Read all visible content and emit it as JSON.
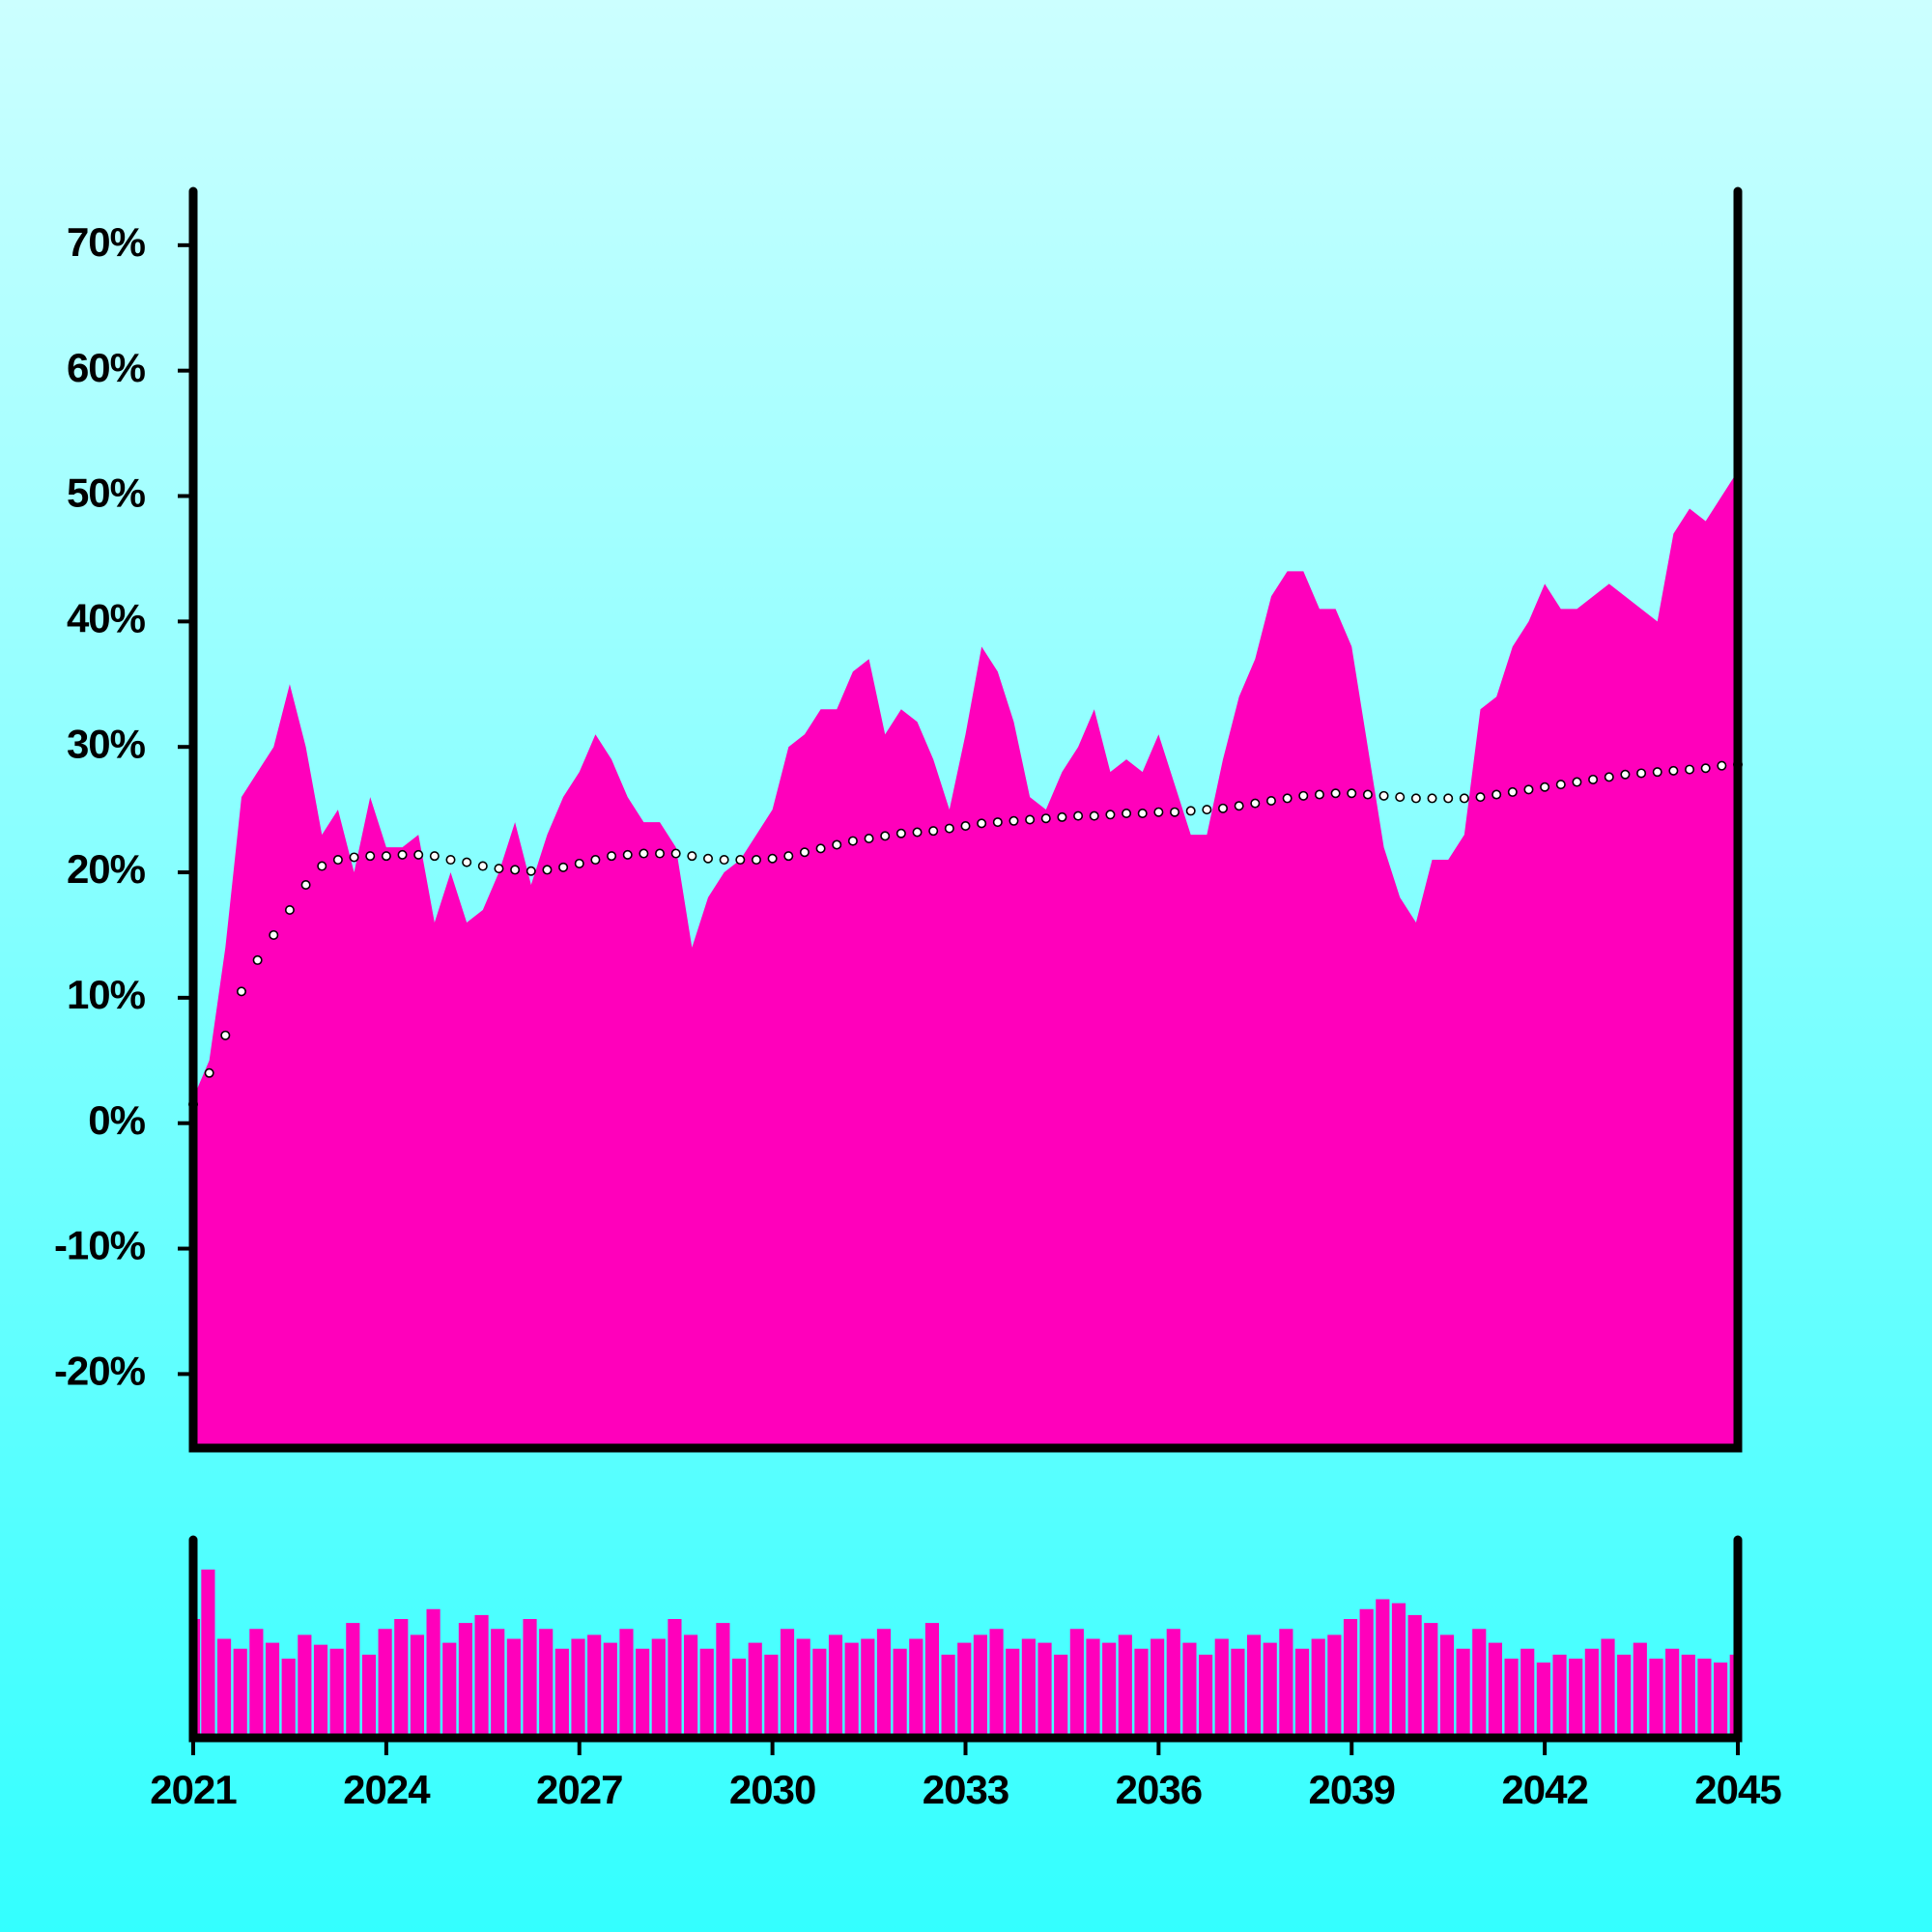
{
  "chart_data": [
    {
      "type": "area",
      "x": [
        2021,
        2021.25,
        2021.5,
        2021.75,
        2022,
        2022.25,
        2022.5,
        2022.75,
        2023,
        2023.25,
        2023.5,
        2023.75,
        2024,
        2024.25,
        2024.5,
        2024.75,
        2025,
        2025.25,
        2025.5,
        2025.75,
        2026,
        2026.25,
        2026.5,
        2026.75,
        2027,
        2027.25,
        2027.5,
        2027.75,
        2028,
        2028.25,
        2028.5,
        2028.75,
        2029,
        2029.25,
        2029.5,
        2029.75,
        2030,
        2030.25,
        2030.5,
        2030.75,
        2031,
        2031.25,
        2031.5,
        2031.75,
        2032,
        2032.25,
        2032.5,
        2032.75,
        2033,
        2033.25,
        2033.5,
        2033.75,
        2034,
        2034.25,
        2034.5,
        2034.75,
        2035,
        2035.25,
        2035.5,
        2035.75,
        2036,
        2036.25,
        2036.5,
        2036.75,
        2037,
        2037.25,
        2037.5,
        2037.75,
        2038,
        2038.25,
        2038.5,
        2038.75,
        2039,
        2039.25,
        2039.5,
        2039.75,
        2040,
        2040.25,
        2040.5,
        2040.75,
        2041,
        2041.25,
        2041.5,
        2041.75,
        2042,
        2042.25,
        2042.5,
        2042.75,
        2043,
        2043.25,
        2043.5,
        2043.75,
        2044,
        2044.25,
        2044.5,
        2044.75,
        2045
      ],
      "series": [
        {
          "type": "area",
          "color": "#ff00bb",
          "values": [
            2,
            5,
            14,
            26,
            28,
            30,
            35,
            30,
            23,
            25,
            20,
            26,
            22,
            22,
            23,
            16,
            20,
            16,
            17,
            20,
            24,
            19,
            23,
            26,
            28,
            31,
            29,
            26,
            24,
            24,
            22,
            14,
            18,
            20,
            21,
            23,
            25,
            30,
            31,
            33,
            33,
            36,
            37,
            31,
            33,
            32,
            29,
            25,
            31,
            38,
            36,
            32,
            26,
            25,
            28,
            30,
            33,
            28,
            29,
            28,
            31,
            27,
            23,
            23,
            29,
            34,
            37,
            42,
            44,
            44,
            41,
            41,
            38,
            30,
            22,
            18,
            16,
            21,
            21,
            23,
            33,
            34,
            38,
            40,
            43,
            41,
            41,
            42,
            43,
            42,
            41,
            40,
            47,
            49,
            48,
            50,
            52
          ]
        },
        {
          "type": "scatter",
          "color": "#ffffff",
          "values": [
            1.5,
            4,
            7,
            10.5,
            13,
            15,
            17,
            19,
            20.5,
            21,
            21.2,
            21.3,
            21.3,
            21.4,
            21.4,
            21.3,
            21.0,
            20.8,
            20.5,
            20.3,
            20.2,
            20.1,
            20.2,
            20.4,
            20.7,
            21.0,
            21.3,
            21.4,
            21.5,
            21.5,
            21.5,
            21.3,
            21.1,
            21.0,
            21.0,
            21.0,
            21.1,
            21.3,
            21.6,
            21.9,
            22.2,
            22.5,
            22.7,
            22.9,
            23.1,
            23.2,
            23.3,
            23.5,
            23.7,
            23.9,
            24.0,
            24.1,
            24.2,
            24.3,
            24.4,
            24.5,
            24.5,
            24.6,
            24.7,
            24.7,
            24.8,
            24.8,
            24.9,
            25.0,
            25.1,
            25.3,
            25.5,
            25.7,
            25.9,
            26.1,
            26.2,
            26.3,
            26.3,
            26.2,
            26.1,
            26.0,
            25.9,
            25.9,
            25.9,
            25.9,
            26.0,
            26.2,
            26.4,
            26.6,
            26.8,
            27.0,
            27.2,
            27.4,
            27.6,
            27.8,
            27.9,
            28.0,
            28.1,
            28.2,
            28.3,
            28.5,
            28.6
          ]
        }
      ],
      "xlim": [
        2021,
        2045
      ],
      "ylim": [
        -25.9,
        74.3
      ],
      "yticks": [
        {
          "value": -20,
          "label": "-20%"
        },
        {
          "value": -10,
          "label": "-10%"
        },
        {
          "value": 0,
          "label": "0%"
        },
        {
          "value": 10,
          "label": "10%"
        },
        {
          "value": 20,
          "label": "20%"
        },
        {
          "value": 30,
          "label": "30%"
        },
        {
          "value": 40,
          "label": "40%"
        },
        {
          "value": 50,
          "label": "50%"
        },
        {
          "value": 60,
          "label": "60%"
        },
        {
          "value": 70,
          "label": "70%"
        }
      ]
    },
    {
      "type": "bar",
      "color": "#ff00bb",
      "x": [
        2021,
        2021.25,
        2021.5,
        2021.75,
        2022,
        2022.25,
        2022.5,
        2022.75,
        2023,
        2023.25,
        2023.5,
        2023.75,
        2024,
        2024.25,
        2024.5,
        2024.75,
        2025,
        2025.25,
        2025.5,
        2025.75,
        2026,
        2026.25,
        2026.5,
        2026.75,
        2027,
        2027.25,
        2027.5,
        2027.75,
        2028,
        2028.25,
        2028.5,
        2028.75,
        2029,
        2029.25,
        2029.5,
        2029.75,
        2030,
        2030.25,
        2030.5,
        2030.75,
        2031,
        2031.25,
        2031.5,
        2031.75,
        2032,
        2032.25,
        2032.5,
        2032.75,
        2033,
        2033.25,
        2033.5,
        2033.75,
        2034,
        2034.25,
        2034.5,
        2034.75,
        2035,
        2035.25,
        2035.5,
        2035.75,
        2036,
        2036.25,
        2036.5,
        2036.75,
        2037,
        2037.25,
        2037.5,
        2037.75,
        2038,
        2038.25,
        2038.5,
        2038.75,
        2039,
        2039.25,
        2039.5,
        2039.75,
        2040,
        2040.25,
        2040.5,
        2040.75,
        2041,
        2041.25,
        2041.5,
        2041.75,
        2042,
        2042.25,
        2042.5,
        2042.75,
        2043,
        2043.25,
        2043.5,
        2043.75,
        2044,
        2044.25,
        2044.5,
        2044.75,
        2045
      ],
      "values": [
        60,
        85,
        50,
        45,
        55,
        48,
        40,
        52,
        47,
        45,
        58,
        42,
        55,
        60,
        52,
        65,
        48,
        58,
        62,
        55,
        50,
        60,
        55,
        45,
        50,
        52,
        48,
        55,
        45,
        50,
        60,
        52,
        45,
        58,
        40,
        48,
        42,
        55,
        50,
        45,
        52,
        48,
        50,
        55,
        45,
        50,
        58,
        42,
        48,
        52,
        55,
        45,
        50,
        48,
        42,
        55,
        50,
        48,
        52,
        45,
        50,
        55,
        48,
        42,
        50,
        45,
        52,
        48,
        55,
        45,
        50,
        52,
        60,
        65,
        70,
        68,
        62,
        58,
        52,
        45,
        55,
        48,
        40,
        45,
        38,
        42,
        40,
        45,
        50,
        42,
        48,
        40,
        45,
        42,
        40,
        38,
        42
      ],
      "xlim": [
        2021,
        2045
      ],
      "ylim": [
        0,
        100
      ],
      "xticks": [
        2021,
        2024,
        2027,
        2030,
        2033,
        2036,
        2039,
        2042,
        2045
      ]
    }
  ]
}
